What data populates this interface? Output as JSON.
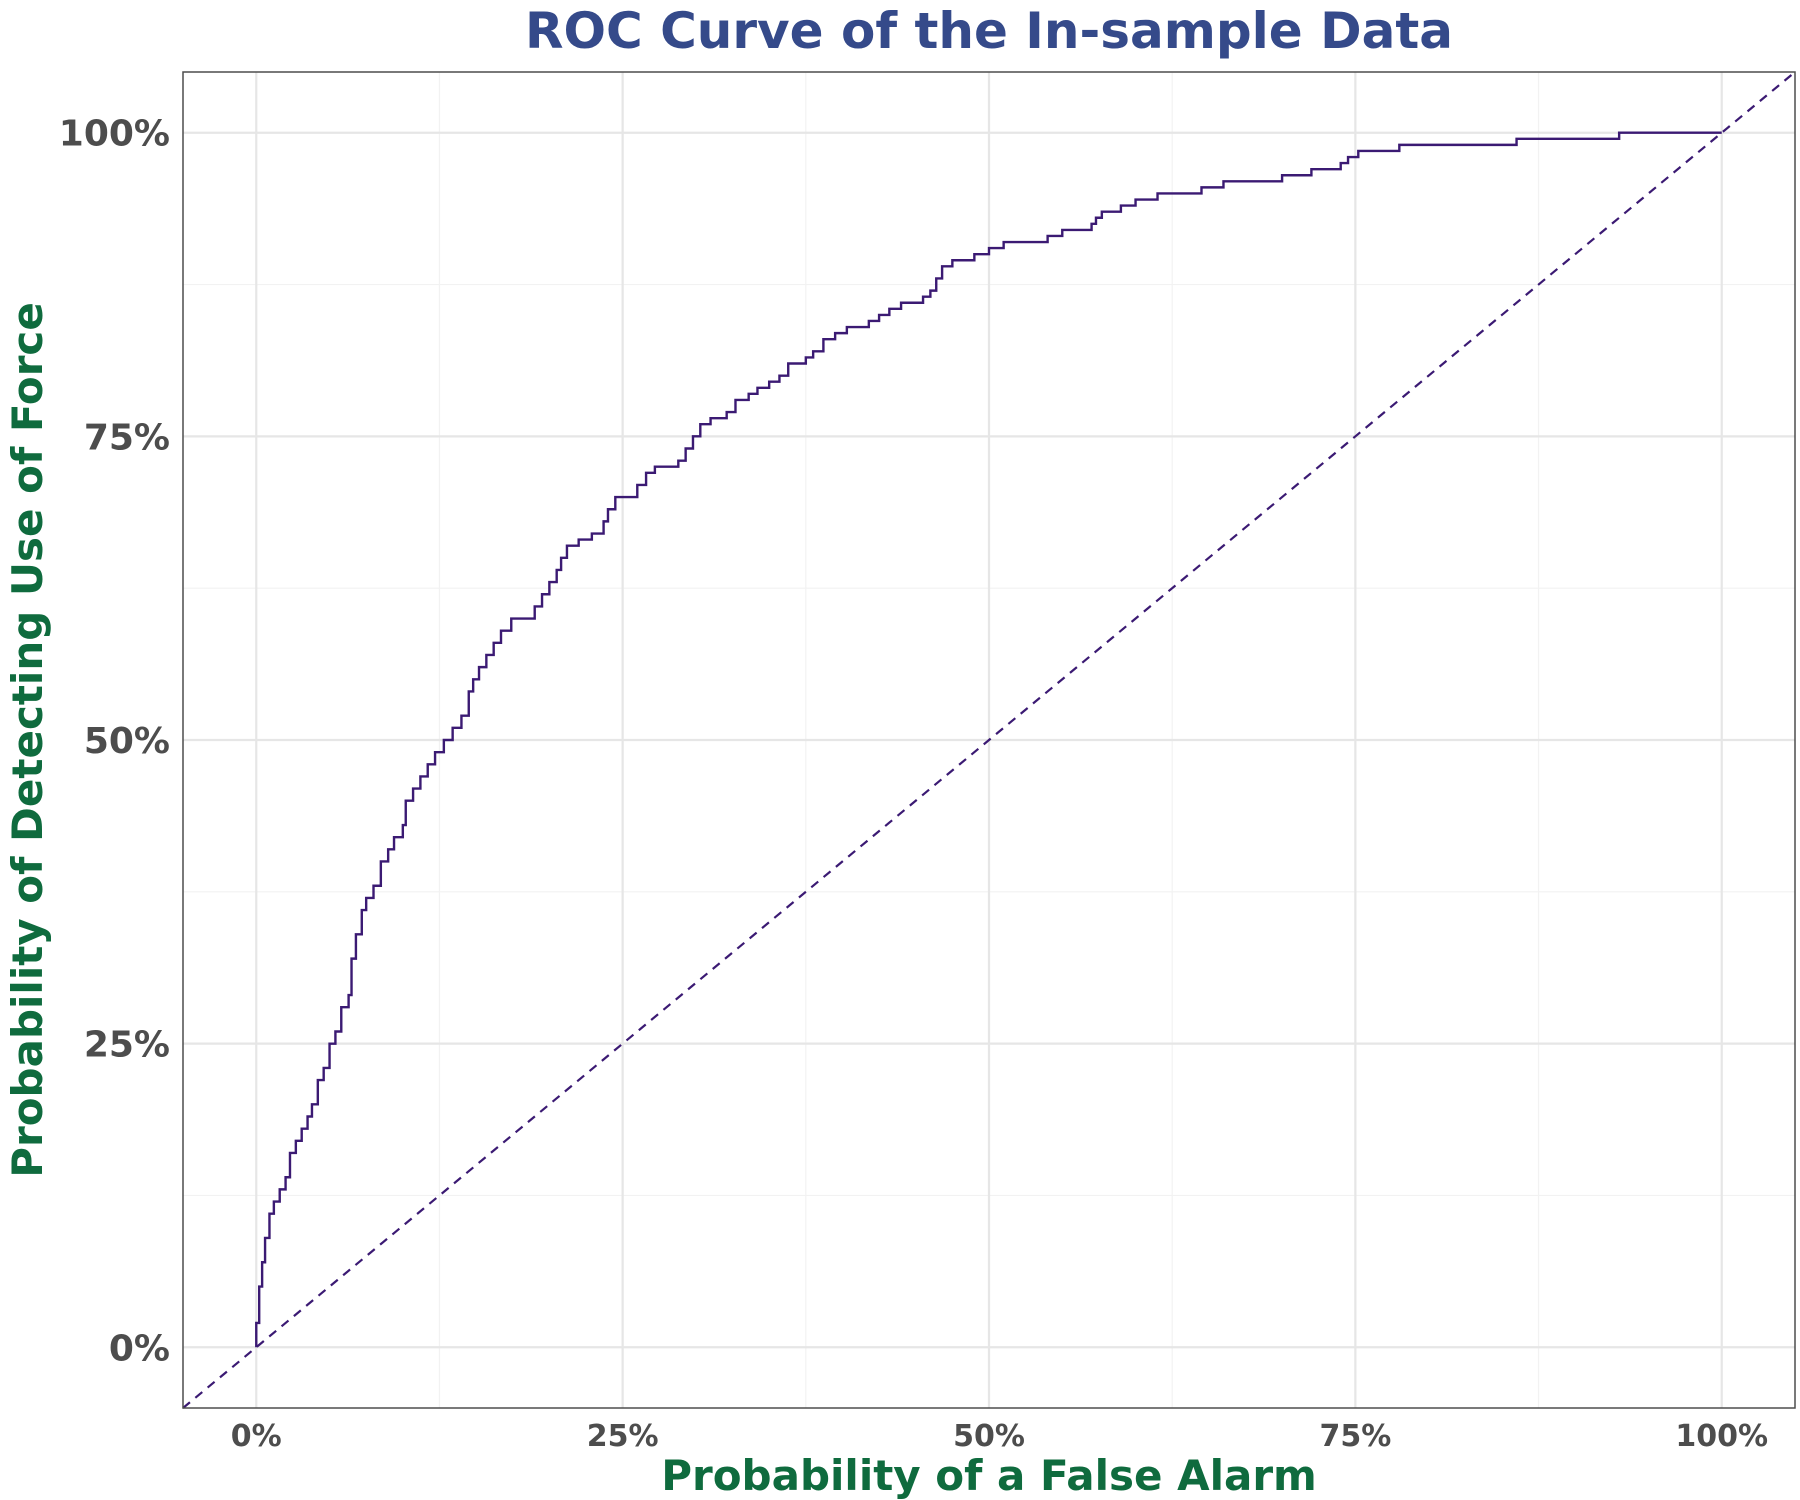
{
  "colors": {
    "title": "#354a8a",
    "axis_label": "#0f6b3e",
    "tick_label": "#4d4d4d",
    "curve": "#3b1a73",
    "grid_major": "#e6e6e6",
    "grid_minor": "#f2f2f2",
    "panel_border": "#4d4d4d"
  },
  "chart_data": {
    "type": "line",
    "title": "ROC Curve of the In-sample Data",
    "xlabel": "Probability of a False Alarm",
    "ylabel": "Probability of Detecting Use of Force",
    "xlim": [
      -0.05,
      1.05
    ],
    "ylim": [
      -0.05,
      1.05
    ],
    "x_ticks": [
      {
        "value": 0,
        "label": "0%"
      },
      {
        "value": 0.25,
        "label": "25%"
      },
      {
        "value": 0.5,
        "label": "50%"
      },
      {
        "value": 0.75,
        "label": "75%"
      },
      {
        "value": 1,
        "label": "100%"
      }
    ],
    "y_ticks": [
      {
        "value": 0,
        "label": "0%"
      },
      {
        "value": 0.25,
        "label": "25%"
      },
      {
        "value": 0.5,
        "label": "50%"
      },
      {
        "value": 0.75,
        "label": "75%"
      },
      {
        "value": 1,
        "label": "100%"
      }
    ],
    "x_minor_ticks": [
      0.125,
      0.375,
      0.625,
      0.875
    ],
    "y_minor_ticks": [
      0.125,
      0.375,
      0.625,
      0.875
    ],
    "grid": true,
    "series": [
      {
        "line_style": "solid-step",
        "points": [
          [
            0.0,
            0.0
          ],
          [
            0.0,
            0.02
          ],
          [
            0.002,
            0.05
          ],
          [
            0.004,
            0.07
          ],
          [
            0.006,
            0.09
          ],
          [
            0.009,
            0.11
          ],
          [
            0.012,
            0.12
          ],
          [
            0.016,
            0.13
          ],
          [
            0.02,
            0.14
          ],
          [
            0.023,
            0.16
          ],
          [
            0.027,
            0.17
          ],
          [
            0.031,
            0.18
          ],
          [
            0.035,
            0.19
          ],
          [
            0.038,
            0.2
          ],
          [
            0.042,
            0.22
          ],
          [
            0.046,
            0.23
          ],
          [
            0.05,
            0.25
          ],
          [
            0.054,
            0.26
          ],
          [
            0.058,
            0.28
          ],
          [
            0.063,
            0.29
          ],
          [
            0.065,
            0.32
          ],
          [
            0.068,
            0.34
          ],
          [
            0.072,
            0.36
          ],
          [
            0.075,
            0.37
          ],
          [
            0.08,
            0.38
          ],
          [
            0.085,
            0.4
          ],
          [
            0.09,
            0.41
          ],
          [
            0.094,
            0.42
          ],
          [
            0.1,
            0.43
          ],
          [
            0.102,
            0.45
          ],
          [
            0.107,
            0.46
          ],
          [
            0.112,
            0.47
          ],
          [
            0.117,
            0.48
          ],
          [
            0.122,
            0.49
          ],
          [
            0.128,
            0.5
          ],
          [
            0.134,
            0.51
          ],
          [
            0.14,
            0.52
          ],
          [
            0.145,
            0.54
          ],
          [
            0.148,
            0.55
          ],
          [
            0.152,
            0.56
          ],
          [
            0.157,
            0.57
          ],
          [
            0.162,
            0.58
          ],
          [
            0.167,
            0.59
          ],
          [
            0.174,
            0.6
          ],
          [
            0.19,
            0.61
          ],
          [
            0.195,
            0.62
          ],
          [
            0.2,
            0.63
          ],
          [
            0.205,
            0.64
          ],
          [
            0.208,
            0.65
          ],
          [
            0.212,
            0.66
          ],
          [
            0.22,
            0.665
          ],
          [
            0.229,
            0.67
          ],
          [
            0.237,
            0.68
          ],
          [
            0.24,
            0.69
          ],
          [
            0.245,
            0.7
          ],
          [
            0.254,
            0.7
          ],
          [
            0.26,
            0.71
          ],
          [
            0.266,
            0.72
          ],
          [
            0.272,
            0.725
          ],
          [
            0.288,
            0.73
          ],
          [
            0.293,
            0.74
          ],
          [
            0.298,
            0.75
          ],
          [
            0.303,
            0.76
          ],
          [
            0.31,
            0.765
          ],
          [
            0.321,
            0.77
          ],
          [
            0.327,
            0.78
          ],
          [
            0.336,
            0.785
          ],
          [
            0.342,
            0.79
          ],
          [
            0.35,
            0.795
          ],
          [
            0.357,
            0.8
          ],
          [
            0.363,
            0.81
          ],
          [
            0.375,
            0.815
          ],
          [
            0.38,
            0.82
          ],
          [
            0.387,
            0.83
          ],
          [
            0.395,
            0.835
          ],
          [
            0.403,
            0.84
          ],
          [
            0.418,
            0.845
          ],
          [
            0.425,
            0.85
          ],
          [
            0.432,
            0.855
          ],
          [
            0.44,
            0.86
          ],
          [
            0.455,
            0.865
          ],
          [
            0.46,
            0.87
          ],
          [
            0.464,
            0.88
          ],
          [
            0.468,
            0.89
          ],
          [
            0.475,
            0.895
          ],
          [
            0.49,
            0.9
          ],
          [
            0.5,
            0.905
          ],
          [
            0.51,
            0.91
          ],
          [
            0.53,
            0.91
          ],
          [
            0.54,
            0.915
          ],
          [
            0.55,
            0.92
          ],
          [
            0.57,
            0.925
          ],
          [
            0.573,
            0.93
          ],
          [
            0.577,
            0.935
          ],
          [
            0.59,
            0.94
          ],
          [
            0.6,
            0.945
          ],
          [
            0.615,
            0.95
          ],
          [
            0.645,
            0.955
          ],
          [
            0.66,
            0.96
          ],
          [
            0.7,
            0.965
          ],
          [
            0.72,
            0.97
          ],
          [
            0.74,
            0.975
          ],
          [
            0.745,
            0.98
          ],
          [
            0.752,
            0.985
          ],
          [
            0.78,
            0.99
          ],
          [
            0.85,
            0.99
          ],
          [
            0.86,
            0.995
          ],
          [
            0.92,
            0.995
          ],
          [
            0.93,
            1.0
          ],
          [
            1.0,
            1.0
          ]
        ]
      },
      {
        "line_style": "dashed",
        "points": [
          [
            -0.05,
            -0.05
          ],
          [
            1.05,
            1.05
          ]
        ]
      }
    ]
  }
}
